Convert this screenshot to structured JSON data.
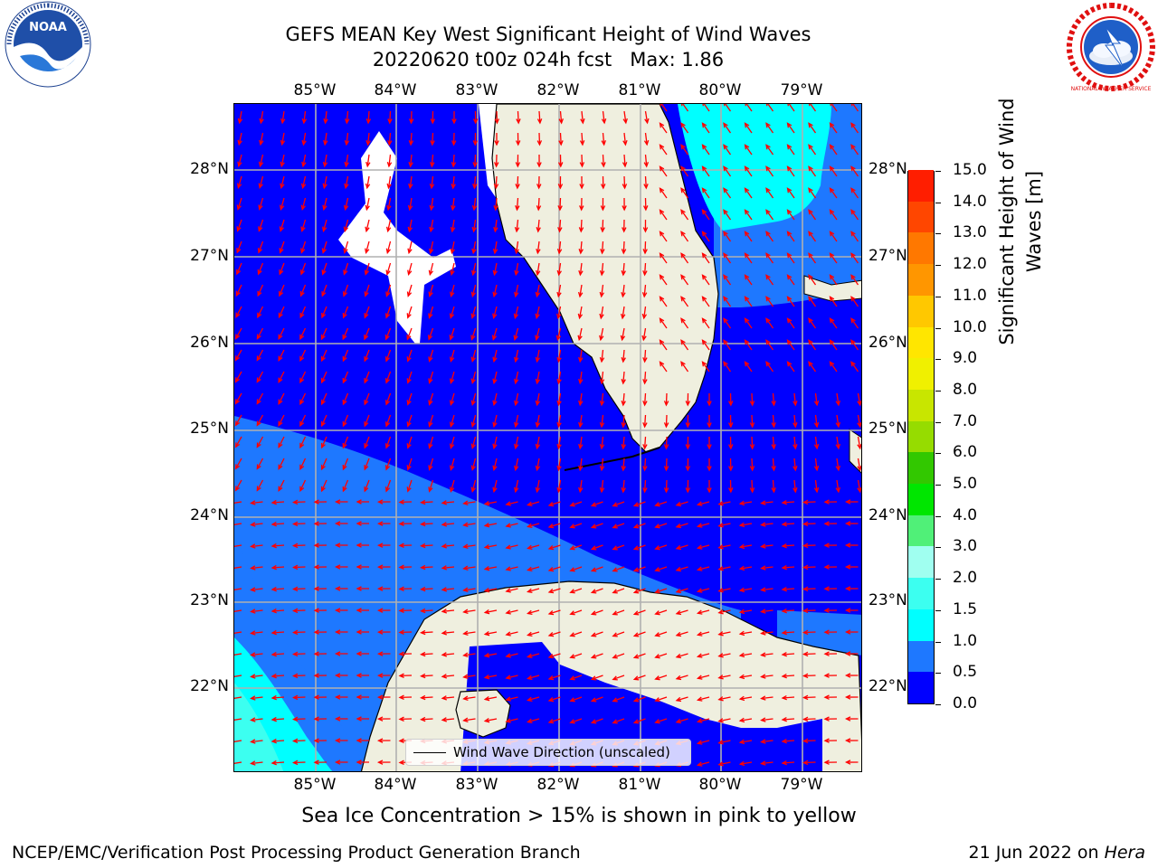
{
  "title": {
    "line1": "GEFS MEAN Key West Significant Height of Wind Waves",
    "line2": "20220620 t00z 024h fcst   Max: 1.86"
  },
  "logos": {
    "left": {
      "name": "noaa-logo",
      "text": "NOAA"
    },
    "right": {
      "name": "national-weather-service-logo",
      "text": "NATIONAL WEATHER SERVICE"
    }
  },
  "map": {
    "lon_labels": [
      "85°W",
      "84°W",
      "83°W",
      "82°W",
      "81°W",
      "80°W",
      "79°W"
    ],
    "lat_labels": [
      "28°N",
      "27°N",
      "26°N",
      "25°N",
      "24°N",
      "23°N",
      "22°N"
    ],
    "lon_range": [
      -86.0,
      -78.0
    ],
    "lat_range": [
      21.0,
      28.8
    ],
    "gridlines": true,
    "arrow_color": "#ff0000",
    "land_color": "#efefdf",
    "legend_label": "Wind Wave Direction (unscaled)"
  },
  "colorbar": {
    "label": "Significant Height of Wind Waves [m]",
    "label_line1": "Significant Height of Wind",
    "label_line2": "Waves [m]",
    "levels": [
      "0.0",
      "0.5",
      "1.0",
      "1.5",
      "2.0",
      "3.0",
      "4.0",
      "5.0",
      "6.0",
      "7.0",
      "8.0",
      "9.0",
      "10.0",
      "11.0",
      "12.0",
      "13.0",
      "14.0",
      "15.0"
    ],
    "colors": [
      "#0000ff",
      "#1e78ff",
      "#00ffff",
      "#3cfff0",
      "#a0fff0",
      "#50f078",
      "#00e600",
      "#32c800",
      "#96dc00",
      "#c8e600",
      "#f0f000",
      "#ffe600",
      "#ffc800",
      "#ff9600",
      "#ff7800",
      "#ff4600",
      "#ff1e00"
    ]
  },
  "note": "Sea Ice Concentration > 15% is shown in pink to yellow",
  "footer": {
    "left": "NCEP/EMC/Verification Post Processing Product Generation Branch",
    "right_prefix": "21 Jun 2022 on ",
    "right_host": "Hera"
  }
}
